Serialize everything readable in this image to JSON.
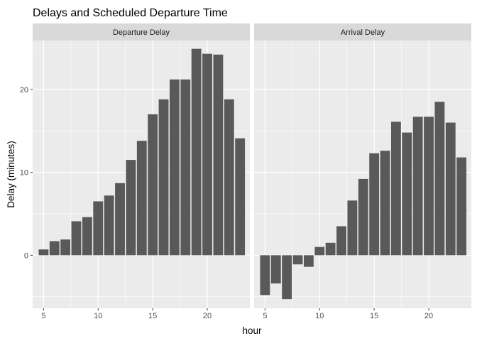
{
  "chart_data": {
    "type": "bar",
    "title": "Delays and Scheduled Departure Time",
    "xlabel": "hour",
    "ylabel": "Delay (minutes)",
    "xlim": [
      4,
      23.9
    ],
    "ylim": [
      -6.4,
      25.9
    ],
    "x_ticks": [
      5,
      10,
      15,
      20
    ],
    "y_ticks": [
      0,
      10,
      20
    ],
    "x": [
      5,
      6,
      7,
      8,
      9,
      10,
      11,
      12,
      13,
      14,
      15,
      16,
      17,
      18,
      19,
      20,
      21,
      22,
      23
    ],
    "grid": true,
    "series": [
      {
        "name": "Departure Delay",
        "values": [
          0.7,
          1.7,
          1.9,
          4.1,
          4.6,
          6.5,
          7.2,
          8.7,
          11.5,
          13.8,
          17.0,
          18.8,
          21.2,
          21.2,
          24.9,
          24.3,
          24.2,
          18.8,
          14.1
        ]
      },
      {
        "name": "Arrival Delay",
        "values": [
          -4.8,
          -3.4,
          -5.3,
          -1.1,
          -1.4,
          1.0,
          1.5,
          3.5,
          6.6,
          9.2,
          12.3,
          12.6,
          16.1,
          14.8,
          16.7,
          16.7,
          18.5,
          16.0,
          11.8
        ]
      }
    ]
  },
  "colors": {
    "panel_background": "#ebebeb",
    "strip_background": "#d9d9d9",
    "grid_line": "#ffffff",
    "bar_fill": "#595959"
  }
}
